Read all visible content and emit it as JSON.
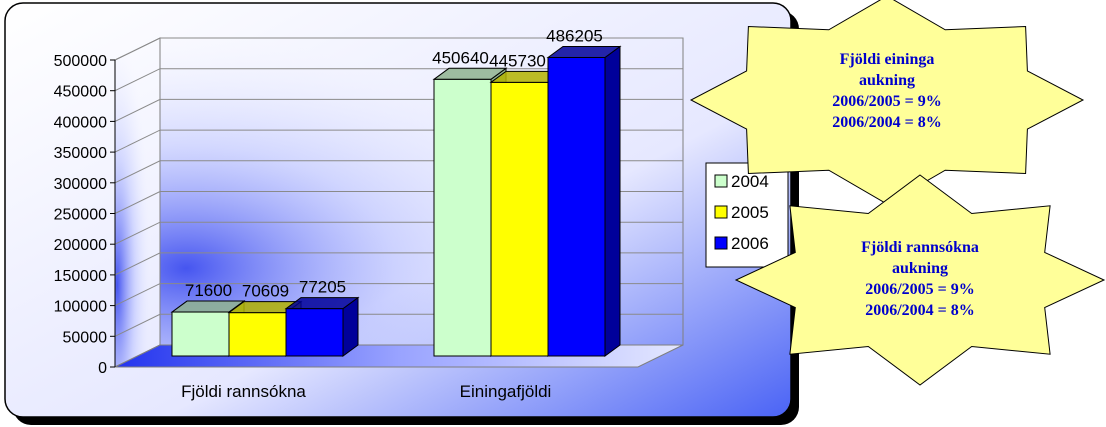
{
  "chart_data": {
    "type": "bar",
    "categories": [
      "Fjöldi rannsókna",
      "Einingafjöldi"
    ],
    "series": [
      {
        "name": "2004",
        "values": [
          71600,
          450640
        ],
        "color": "#ccffcc",
        "dark": "#8fb38f"
      },
      {
        "name": "2005",
        "values": [
          70609,
          445730
        ],
        "color": "#ffff00",
        "dark": "#b3b300"
      },
      {
        "name": "2006",
        "values": [
          77205,
          486205
        ],
        "color": "#0000ff",
        "dark": "#00009a"
      }
    ],
    "ylim": [
      0,
      500000
    ],
    "yticks": [
      "0",
      "50000",
      "100000",
      "150000",
      "200000",
      "250000",
      "300000",
      "350000",
      "400000",
      "450000",
      "500000"
    ],
    "grid": true,
    "legend_position": "right",
    "style": "3d-clustered-column"
  },
  "callouts": [
    {
      "lines": [
        "Fjöldi eininga",
        "aukning",
        "2006/2005 = 9%",
        "2006/2004 = 8%"
      ]
    },
    {
      "lines": [
        "Fjöldi rannsókna",
        "aukning",
        "2006/2005 = 9%",
        "2006/2004 = 8%"
      ]
    }
  ],
  "colors": {
    "callout_fill": "#ffff99",
    "callout_text": "#0000cc"
  }
}
